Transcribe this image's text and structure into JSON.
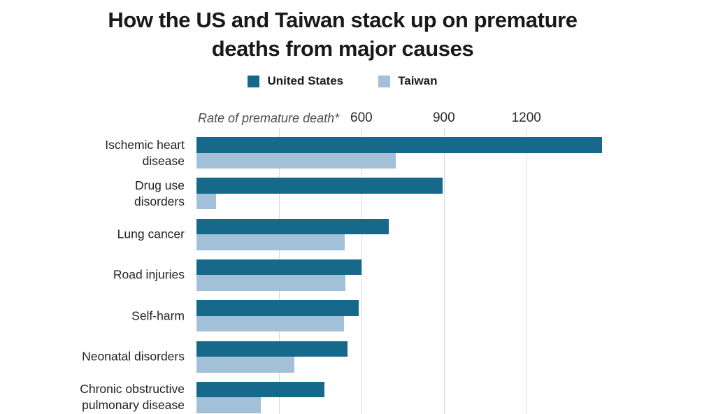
{
  "header": {
    "title": "How the US and Taiwan stack up on premature deaths from major causes",
    "title_lines": [
      "How the US and Taiwan stack up on premature",
      "deaths from major causes"
    ]
  },
  "colors": {
    "us_bar": "#17698c",
    "taiwan_bar": "#a2c1d9",
    "gridline": "#d9d9d9",
    "title_text": "#191919",
    "category_text": "#222222",
    "axis_text": "#4d4d4d"
  },
  "chart_data": {
    "type": "bar",
    "orientation": "horizontal",
    "title": "How the US and Taiwan stack up on premature deaths from major causes",
    "xlabel": "Rate of premature death*",
    "ylabel": "",
    "grid": true,
    "legend_position": "top",
    "xlim": [
      0,
      1890
    ],
    "categories": [
      {
        "label": "Ischemic heart disease",
        "lines": [
          "Ischemic heart",
          "disease"
        ]
      },
      {
        "label": "Drug use disorders",
        "lines": [
          "Drug use",
          "disorders"
        ]
      },
      {
        "label": "Lung cancer",
        "lines": [
          "Lung cancer"
        ]
      },
      {
        "label": "Road injuries",
        "lines": [
          "Road injuries"
        ]
      },
      {
        "label": "Self-harm",
        "lines": [
          "Self-harm"
        ]
      },
      {
        "label": "Neonatal disorders",
        "lines": [
          "Neonatal disorders"
        ]
      },
      {
        "label": "Chronic obstructive pulmonary disease",
        "lines": [
          "Chronic obstructive",
          "pulmonary disease"
        ]
      }
    ],
    "series": [
      {
        "name": "United States",
        "color": "#17698c",
        "values": [
          1475,
          895,
          700,
          600,
          590,
          550,
          465
        ]
      },
      {
        "name": "Taiwan",
        "color": "#a2c1d9",
        "values": [
          725,
          70,
          540,
          543,
          538,
          355,
          235
        ]
      }
    ],
    "gridlines": [
      300,
      600,
      900,
      1200
    ],
    "ticks": [
      {
        "value": 600,
        "label": "600"
      },
      {
        "value": 900,
        "label": "900"
      },
      {
        "value": 1200,
        "label": "1200"
      }
    ]
  }
}
